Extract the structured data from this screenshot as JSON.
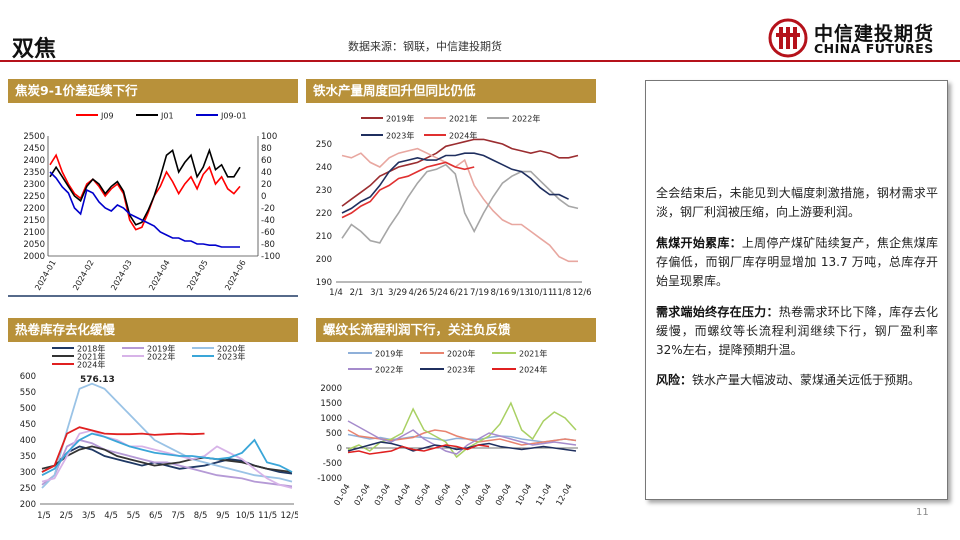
{
  "header": {
    "title": "双焦",
    "source": "数据来源：钢联，中信建投期货",
    "logo_cn": "中信建投期货",
    "logo_en": "CHINA FUTURES",
    "brand_color": "#b5121b"
  },
  "page_number": "11",
  "panels": {
    "p1": {
      "title": "焦炭9-1价差延续下行"
    },
    "p2": {
      "title": "铁水产量周度回升但同比仍低"
    },
    "p3": {
      "title": "热卷库存去化缓慢"
    },
    "p4": {
      "title": "螺纹长流程利润下行，关注负反馈"
    }
  },
  "commentary": {
    "p1_text": "全会结束后，未能见到大幅度刺激措施，钢材需求平淡，钢厂利润被压缩，向上游要利润。",
    "p2_head": "焦煤开始累库：",
    "p2_text": "上周停产煤矿陆续复产，焦企焦煤库存偏低，而钢厂库存明显增加 13.7 万吨，总库存开始呈现累库。",
    "p3_head": "需求端始终存在压力：",
    "p3_text": "热卷需求环比下降，库存去化缓慢，而螺纹等长流程利润继续下行，钢厂盈利率32%左右，提降预期升温。",
    "p4_head": "风险：",
    "p4_text": "铁水产量大幅波动、蒙煤通关远低于预期。"
  },
  "chart_data": [
    {
      "type": "line",
      "legend": [
        "J09",
        "J01",
        "J09-01"
      ],
      "colors": [
        "#ff0000",
        "#000000",
        "#0000cc"
      ],
      "x_ticks": [
        "2024-01",
        "2024-02",
        "2024-03",
        "2024-04",
        "2024-05",
        "2024-06"
      ],
      "y_left": {
        "ticks": [
          2500,
          2450,
          2400,
          2350,
          2300,
          2250,
          2200,
          2150,
          2100,
          2050,
          2000
        ],
        "range": [
          2000,
          2500
        ]
      },
      "y_right": {
        "ticks": [
          100,
          80,
          60,
          40,
          20,
          0,
          -20,
          -40,
          -60,
          -80,
          -100
        ],
        "range": [
          -100,
          100
        ]
      },
      "series": [
        {
          "name": "J09",
          "axis": "left",
          "values": [
            2380,
            2420,
            2350,
            2300,
            2260,
            2240,
            2300,
            2320,
            2290,
            2250,
            2280,
            2300,
            2260,
            2150,
            2110,
            2120,
            2180,
            2250,
            2290,
            2350,
            2310,
            2260,
            2300,
            2330,
            2280,
            2340,
            2370,
            2300,
            2330,
            2280,
            2260,
            2290
          ]
        },
        {
          "name": "J01",
          "axis": "left",
          "values": [
            2330,
            2370,
            2330,
            2290,
            2250,
            2230,
            2290,
            2320,
            2300,
            2260,
            2290,
            2310,
            2270,
            2170,
            2130,
            2140,
            2190,
            2250,
            2330,
            2420,
            2440,
            2350,
            2390,
            2420,
            2330,
            2370,
            2440,
            2360,
            2380,
            2330,
            2330,
            2370
          ]
        },
        {
          "name": "J09-01",
          "axis": "right",
          "values": [
            40,
            30,
            15,
            5,
            -20,
            -30,
            10,
            5,
            -10,
            -20,
            -25,
            -15,
            -20,
            -30,
            -35,
            -40,
            -45,
            -50,
            -60,
            -65,
            -70,
            -70,
            -75,
            -75,
            -80,
            -80,
            -82,
            -82,
            -85,
            -85,
            -85,
            -85
          ]
        }
      ]
    },
    {
      "type": "line",
      "legend": [
        "2019年",
        "2021年",
        "2022年",
        "2023年",
        "2024年"
      ],
      "colors": [
        "#9b2d30",
        "#e8a7a0",
        "#a6a6a6",
        "#1f2f5f",
        "#e03030"
      ],
      "x_ticks": [
        "1/4",
        "2/1",
        "3/1",
        "3/29",
        "4/26",
        "5/24",
        "6/21",
        "7/19",
        "8/16",
        "9/13",
        "10/11",
        "11/8",
        "12/6"
      ],
      "y_ticks": [
        250,
        240,
        230,
        220,
        210,
        200,
        190
      ],
      "y_range": [
        190,
        250
      ],
      "series": [
        {
          "name": "2019年",
          "values": [
            223,
            226,
            229,
            232,
            236,
            238,
            240,
            241,
            242,
            244,
            246,
            249,
            250,
            251,
            252,
            252,
            251,
            250,
            248,
            247,
            246,
            247,
            246,
            244,
            244,
            245
          ]
        },
        {
          "name": "2021年",
          "values": [
            245,
            244,
            246,
            242,
            240,
            244,
            246,
            247,
            248,
            246,
            244,
            242,
            240,
            243,
            232,
            226,
            221,
            217,
            215,
            215,
            212,
            209,
            206,
            201,
            199,
            199
          ]
        },
        {
          "name": "2022年",
          "values": [
            209,
            215,
            212,
            208,
            207,
            214,
            220,
            227,
            233,
            238,
            239,
            241,
            237,
            220,
            212,
            220,
            227,
            233,
            236,
            238,
            238,
            234,
            230,
            226,
            223,
            222
          ]
        },
        {
          "name": "2023年",
          "values": [
            220,
            222,
            225,
            227,
            232,
            238,
            242,
            243,
            244,
            243,
            243,
            245,
            245,
            246,
            246,
            245,
            243,
            241,
            239,
            238,
            235,
            231,
            228,
            228,
            226
          ]
        },
        {
          "name": "2024年",
          "values": [
            218,
            220,
            223,
            225,
            230,
            232,
            235,
            236,
            238,
            240,
            241,
            242,
            240,
            239,
            240
          ]
        }
      ]
    },
    {
      "type": "line",
      "legend": [
        "2018年",
        "2019年",
        "2020年",
        "2021年",
        "2022年",
        "2023年",
        "2024年"
      ],
      "colors": [
        "#1f3864",
        "#b59ad6",
        "#9ac3e6",
        "#333333",
        "#d7b3e8",
        "#3aa6d8",
        "#e02020"
      ],
      "annotation": "576.13",
      "x_ticks": [
        "1/5",
        "2/5",
        "3/5",
        "4/5",
        "5/5",
        "6/5",
        "7/5",
        "8/5",
        "9/5",
        "10/5",
        "11/5",
        "12/5"
      ],
      "y_ticks": [
        600,
        550,
        500,
        450,
        400,
        350,
        300,
        250,
        200
      ],
      "y_range": [
        200,
        600
      ],
      "series": [
        {
          "name": "2018年",
          "values": [
            300,
            320,
            360,
            380,
            370,
            350,
            340,
            330,
            320,
            330,
            320,
            310,
            315,
            320,
            330,
            340,
            335,
            320,
            310,
            300,
            295
          ]
        },
        {
          "name": "2019年",
          "values": [
            260,
            290,
            380,
            400,
            390,
            370,
            360,
            350,
            340,
            330,
            330,
            320,
            310,
            300,
            290,
            285,
            280,
            270,
            265,
            260,
            255
          ]
        },
        {
          "name": "2020年",
          "values": [
            250,
            290,
            430,
            560,
            576,
            560,
            520,
            480,
            440,
            400,
            380,
            360,
            340,
            330,
            320,
            310,
            300,
            290,
            285,
            280,
            270
          ]
        },
        {
          "name": "2021年",
          "values": [
            310,
            320,
            350,
            370,
            380,
            370,
            350,
            340,
            330,
            320,
            325,
            330,
            340,
            345,
            340,
            335,
            330,
            320,
            310,
            305,
            300
          ]
        },
        {
          "name": "2022年",
          "values": [
            270,
            280,
            350,
            420,
            430,
            410,
            400,
            380,
            380,
            370,
            360,
            350,
            340,
            350,
            380,
            360,
            340,
            310,
            280,
            260,
            250
          ]
        },
        {
          "name": "2023年",
          "values": [
            290,
            310,
            360,
            400,
            420,
            410,
            395,
            380,
            370,
            360,
            355,
            350,
            350,
            345,
            340,
            345,
            360,
            400,
            330,
            320,
            300
          ]
        },
        {
          "name": "2024年",
          "values": [
            300,
            320,
            420,
            440,
            430,
            420,
            418,
            418,
            420,
            416,
            418,
            420,
            418,
            420
          ]
        }
      ]
    },
    {
      "type": "line",
      "legend": [
        "2019年",
        "2020年",
        "2021年",
        "2022年",
        "2023年",
        "2024年"
      ],
      "colors": [
        "#8fb0d9",
        "#e8836f",
        "#a9d063",
        "#a58bcc",
        "#1f2f5f",
        "#e02020"
      ],
      "x_ticks": [
        "01-04",
        "02-04",
        "03-04",
        "04-04",
        "05-04",
        "06-04",
        "07-04",
        "08-04",
        "09-04",
        "10-04",
        "11-04",
        "12-04"
      ],
      "y_ticks": [
        2000,
        1500,
        1000,
        500,
        0,
        -500,
        -1000
      ],
      "y_range": [
        -1000,
        2000
      ],
      "series": [
        {
          "name": "2019年",
          "values": [
            450,
            380,
            300,
            350,
            280,
            320,
            380,
            350,
            300,
            250,
            320,
            300,
            280,
            350,
            400,
            380,
            300,
            250,
            200,
            250,
            300,
            250
          ]
        },
        {
          "name": "2020年",
          "values": [
            600,
            400,
            350,
            300,
            250,
            300,
            350,
            500,
            600,
            550,
            400,
            300,
            200,
            250,
            300,
            200,
            100,
            150,
            200,
            250,
            300,
            250
          ]
        },
        {
          "name": "2021年",
          "values": [
            -50,
            100,
            -100,
            200,
            300,
            500,
            1300,
            600,
            400,
            200,
            -300,
            0,
            200,
            400,
            800,
            1500,
            600,
            300,
            900,
            1200,
            1000,
            600
          ]
        },
        {
          "name": "2022年",
          "values": [
            900,
            700,
            500,
            300,
            200,
            400,
            600,
            300,
            100,
            -100,
            -200,
            100,
            300,
            500,
            400,
            300,
            200,
            100,
            150,
            200,
            150,
            100
          ]
        },
        {
          "name": "2023年",
          "values": [
            -100,
            0,
            100,
            200,
            150,
            50,
            -100,
            0,
            100,
            50,
            -50,
            0,
            100,
            150,
            50,
            0,
            -50,
            0,
            50,
            0,
            -50,
            -100
          ]
        },
        {
          "name": "2024年",
          "values": [
            -150,
            -100,
            -200,
            -150,
            -100,
            50,
            -50,
            -100,
            0,
            100,
            50,
            -50,
            100,
            50
          ]
        }
      ]
    }
  ]
}
